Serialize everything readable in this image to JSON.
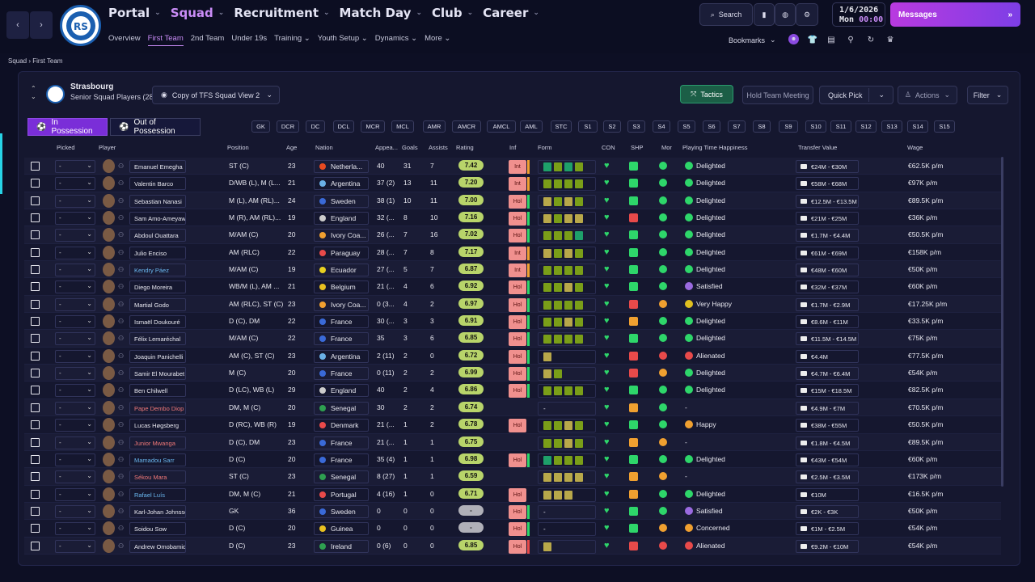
{
  "nav": {
    "main": [
      {
        "label": "Portal",
        "active": false
      },
      {
        "label": "Squad",
        "active": true
      },
      {
        "label": "Recruitment",
        "active": false
      },
      {
        "label": "Match Day",
        "active": false
      },
      {
        "label": "Club",
        "active": false
      },
      {
        "label": "Career",
        "active": false
      }
    ],
    "sub": [
      {
        "label": "Overview",
        "active": false
      },
      {
        "label": "First Team",
        "active": true
      },
      {
        "label": "2nd Team",
        "active": false
      },
      {
        "label": "Under 19s",
        "active": false
      },
      {
        "label": "Training ⌄",
        "active": false
      },
      {
        "label": "Youth Setup ⌄",
        "active": false
      },
      {
        "label": "Dynamics ⌄",
        "active": false
      },
      {
        "label": "More ⌄",
        "active": false
      }
    ],
    "search_label": "Search",
    "bookmarks_label": "Bookmarks"
  },
  "date": {
    "date": "1/6/2026",
    "day": "Mon",
    "time": "00:00"
  },
  "messages_label": "Messages",
  "breadcrumb": {
    "root": "Squad",
    "current": "First Team"
  },
  "team": {
    "name": "Strasbourg",
    "subtitle": "Senior Squad Players (28)",
    "view": "Copy of TFS Squad View 2"
  },
  "buttons": {
    "tactics": "Tactics",
    "meeting": "Hold Team Meeting",
    "quick_pick": "Quick Pick",
    "actions": "Actions",
    "filter": "Filter"
  },
  "tabs": {
    "in_possession": "In Possession",
    "out_possession": "Out of Possession"
  },
  "positions": [
    "GK",
    "DCR",
    "DC",
    "DCL",
    "MCR",
    "MCL",
    "AMR",
    "AMCR",
    "AMCL",
    "AML",
    "STC",
    "S1",
    "S2",
    "S3",
    "S4",
    "S5",
    "S6",
    "S7",
    "S8",
    "S9",
    "S10",
    "S11",
    "S12",
    "S13",
    "S14",
    "S15"
  ],
  "columns": {
    "picked": "Picked",
    "player": "Player",
    "position": "Position",
    "age": "Age",
    "nation": "Nation",
    "apps": "Appea...",
    "goals": "Goals",
    "assists": "Assists",
    "rating": "Rating",
    "inf": "Inf",
    "form": "Form",
    "con": "CON",
    "shp": "SHP",
    "mor": "Mor",
    "happiness": "Playing Time Happiness",
    "value": "Transfer Value",
    "wage": "Wage"
  },
  "colors": {
    "accent": "#c98cf6",
    "green": "#2ed66a",
    "red": "#e84a4a",
    "orange": "#f0a030",
    "yellow": "#e0c020",
    "rating": "#b8d46a"
  },
  "players": [
    {
      "pick": "-",
      "name": "Emanuel Emegha",
      "pos": "ST (C)",
      "age": "23",
      "nat": "Netherla...",
      "flag": "#e84a20",
      "apps": "40",
      "goals": "31",
      "assists": "7",
      "rating": "7.42",
      "inf": "Int",
      "infc": "#f0a030",
      "form": [
        "#1ea06a",
        "#7a9e18",
        "#1ea06a",
        "#7a9e18"
      ],
      "shp": "g",
      "mor": "g",
      "hap": "Delighted",
      "hapc": "g",
      "tv": "€24M - €30M",
      "wage": "€62.5K p/m",
      "namec": "#e8e8f0"
    },
    {
      "pick": "-",
      "name": "Valentin Barco",
      "pos": "D/WB (L), M (L...",
      "age": "21",
      "nat": "Argentina",
      "flag": "#6ab0e6",
      "apps": "37 (2)",
      "goals": "13",
      "assists": "11",
      "rating": "7.20",
      "inf": "Int",
      "infc": "#f0a030",
      "form": [
        "#7a9e18",
        "#7a9e18",
        "#7a9e18",
        "#7a9e18"
      ],
      "shp": "g",
      "mor": "g",
      "hap": "Delighted",
      "hapc": "g",
      "tv": "€58M - €68M",
      "wage": "€97K p/m",
      "namec": "#e8e8f0"
    },
    {
      "pick": "-",
      "name": "Sebastian Nanasi",
      "pos": "M (L), AM (RL)...",
      "age": "24",
      "nat": "Sweden",
      "flag": "#3a6ad8",
      "apps": "38 (1)",
      "goals": "10",
      "assists": "11",
      "rating": "7.00",
      "inf": "Hol",
      "infc": "#2ed66a",
      "form": [
        "#b8a84a",
        "#7a9e18",
        "#b8a84a",
        "#7a9e18"
      ],
      "shp": "g",
      "mor": "g",
      "hap": "Delighted",
      "hapc": "g",
      "tv": "€12.5M - €13.5M",
      "wage": "€89.5K p/m",
      "namec": "#e8e8f0"
    },
    {
      "pick": "-",
      "name": "Sam Amo-Ameyaw",
      "pos": "M (R), AM (RL)...",
      "age": "19",
      "nat": "England",
      "flag": "#cccccc",
      "apps": "32 (...",
      "goals": "8",
      "assists": "10",
      "rating": "7.16",
      "inf": "Hol",
      "infc": "#2ed66a",
      "form": [
        "#b8a84a",
        "#7a9e18",
        "#b8a84a",
        "#b8a84a"
      ],
      "shp": "r",
      "mor": "g",
      "hap": "Delighted",
      "hapc": "g",
      "tv": "€21M - €25M",
      "wage": "€36K p/m",
      "namec": "#e8e8f0"
    },
    {
      "pick": "-",
      "name": "Abdoul Ouattara",
      "pos": "M/AM (C)",
      "age": "20",
      "nat": "Ivory Coa...",
      "flag": "#f0a030",
      "apps": "26 (...",
      "goals": "7",
      "assists": "16",
      "rating": "7.02",
      "inf": "Hol",
      "infc": "#2ed66a",
      "form": [
        "#7a9e18",
        "#7a9e18",
        "#7a9e18",
        "#1ea06a"
      ],
      "shp": "g",
      "mor": "g",
      "hap": "Delighted",
      "hapc": "g",
      "tv": "€1.7M - €4.4M",
      "wage": "€50.5K p/m",
      "namec": "#e8e8f0"
    },
    {
      "pick": "-",
      "name": "Julio Enciso",
      "pos": "AM (RLC)",
      "age": "22",
      "nat": "Paraguay",
      "flag": "#e84a4a",
      "apps": "28 (...",
      "goals": "7",
      "assists": "8",
      "rating": "7.17",
      "inf": "Int",
      "infc": "#f0a030",
      "form": [
        "#b8a84a",
        "#7a9e18",
        "#b8a84a",
        "#7a9e18"
      ],
      "shp": "g",
      "mor": "g",
      "hap": "Delighted",
      "hapc": "g",
      "tv": "€61M - €69M",
      "wage": "€158K p/m",
      "namec": "#e8e8f0"
    },
    {
      "pick": "-",
      "name": "Kendry Páez",
      "pos": "M/AM (C)",
      "age": "19",
      "nat": "Ecuador",
      "flag": "#e8d020",
      "apps": "27 (...",
      "goals": "5",
      "assists": "7",
      "rating": "6.87",
      "inf": "Int",
      "infc": "#f0a030",
      "form": [
        "#7a9e18",
        "#7a9e18",
        "#7a9e18",
        "#7a9e18"
      ],
      "shp": "g",
      "mor": "g",
      "hap": "Delighted",
      "hapc": "g",
      "tv": "€48M - €60M",
      "wage": "€50K p/m",
      "namec": "#6ab8f0"
    },
    {
      "pick": "-",
      "name": "Diego Moreira",
      "pos": "WB/M (L), AM ...",
      "age": "21",
      "nat": "Belgium",
      "flag": "#e8c020",
      "apps": "21 (...",
      "goals": "4",
      "assists": "6",
      "rating": "6.92",
      "inf": "Hol",
      "infc": "#2ed66a",
      "form": [
        "#7a9e18",
        "#7a9e18",
        "#b8a84a",
        "#7a9e18"
      ],
      "shp": "g",
      "mor": "g",
      "hap": "Satisfied",
      "hapc": "p",
      "tv": "€32M - €37M",
      "wage": "€60K p/m",
      "namec": "#e8e8f0"
    },
    {
      "pick": "-",
      "name": "Martial Godo",
      "pos": "AM (RLC), ST (C)",
      "age": "23",
      "nat": "Ivory Coa...",
      "flag": "#f0a030",
      "apps": "0 (3...",
      "goals": "4",
      "assists": "2",
      "rating": "6.97",
      "inf": "Hol",
      "infc": "#2ed66a",
      "form": [
        "#7a9e18",
        "#7a9e18",
        "#7a9e18",
        "#7a9e18"
      ],
      "shp": "r",
      "mor": "o",
      "hap": "Very Happy",
      "hapc": "y",
      "tv": "€1.7M - €2.9M",
      "wage": "€17.25K p/m",
      "namec": "#e8e8f0"
    },
    {
      "pick": "-",
      "name": "Ismaël Doukouré",
      "pos": "D (C), DM",
      "age": "22",
      "nat": "France",
      "flag": "#3a6ad8",
      "apps": "30 (...",
      "goals": "3",
      "assists": "3",
      "rating": "6.91",
      "inf": "Hol",
      "infc": "#2ed66a",
      "form": [
        "#7a9e18",
        "#7a9e18",
        "#b8a84a",
        "#7a9e18"
      ],
      "shp": "o",
      "mor": "g",
      "hap": "Delighted",
      "hapc": "g",
      "tv": "€8.6M - €11M",
      "wage": "€33.5K p/m",
      "namec": "#e8e8f0"
    },
    {
      "pick": "-",
      "name": "Félix Lemaréchal",
      "pos": "M/AM (C)",
      "age": "22",
      "nat": "France",
      "flag": "#3a6ad8",
      "apps": "35",
      "goals": "3",
      "assists": "6",
      "rating": "6.85",
      "inf": "Hol",
      "infc": "#2ed66a",
      "form": [
        "#7a9e18",
        "#7a9e18",
        "#7a9e18",
        "#7a9e18"
      ],
      "shp": "g",
      "mor": "g",
      "hap": "Delighted",
      "hapc": "g",
      "tv": "€11.5M - €14.5M",
      "wage": "€75K p/m",
      "namec": "#e8e8f0"
    },
    {
      "pick": "-",
      "name": "Joaquin Panichelli",
      "pos": "AM (C), ST (C)",
      "age": "23",
      "nat": "Argentina",
      "flag": "#6ab0e6",
      "apps": "2 (11)",
      "goals": "2",
      "assists": "0",
      "rating": "6.72",
      "inf": "Hol",
      "infc": "#2ed66a",
      "form": [
        "#b8a84a"
      ],
      "shp": "r",
      "mor": "r",
      "hap": "Alienated",
      "hapc": "r",
      "tv": "€4.4M",
      "wage": "€77.5K p/m",
      "namec": "#e8e8f0"
    },
    {
      "pick": "-",
      "name": "Samir El Mourabet",
      "pos": "M (C)",
      "age": "20",
      "nat": "France",
      "flag": "#3a6ad8",
      "apps": "0 (11)",
      "goals": "2",
      "assists": "2",
      "rating": "6.99",
      "inf": "Hol",
      "infc": "#2ed66a",
      "form": [
        "#b8a84a",
        "#7a9e18"
      ],
      "shp": "r",
      "mor": "o",
      "hap": "Delighted",
      "hapc": "g",
      "tv": "€4.7M - €6.4M",
      "wage": "€54K p/m",
      "namec": "#e8e8f0"
    },
    {
      "pick": "-",
      "name": "Ben Chilwell",
      "pos": "D (LC), WB (L)",
      "age": "29",
      "nat": "England",
      "flag": "#cccccc",
      "apps": "40",
      "goals": "2",
      "assists": "4",
      "rating": "6.86",
      "inf": "Hol",
      "infc": "#2ed66a",
      "form": [
        "#7a9e18",
        "#7a9e18",
        "#7a9e18",
        "#7a9e18"
      ],
      "shp": "g",
      "mor": "g",
      "hap": "Delighted",
      "hapc": "g",
      "tv": "€15M - €18.5M",
      "wage": "€82.5K p/m",
      "namec": "#e8e8f0"
    },
    {
      "pick": "-",
      "name": "Pape Dembo Diop",
      "pos": "DM, M (C)",
      "age": "20",
      "nat": "Senegal",
      "flag": "#2ea050",
      "apps": "30",
      "goals": "2",
      "assists": "2",
      "rating": "6.74",
      "inf": "",
      "infc": "",
      "form": [
        "-"
      ],
      "shp": "o",
      "mor": "g",
      "hap": "-",
      "hapc": "",
      "tv": "€4.9M - €7M",
      "wage": "€70.5K p/m",
      "namec": "#f07878"
    },
    {
      "pick": "-",
      "name": "Lucas Høgsberg",
      "pos": "D (RC), WB (R)",
      "age": "19",
      "nat": "Denmark",
      "flag": "#e84a4a",
      "apps": "21 (...",
      "goals": "1",
      "assists": "2",
      "rating": "6.78",
      "inf": "Hol",
      "infc": "",
      "form": [
        "#7a9e18",
        "#7a9e18",
        "#b8a84a",
        "#7a9e18"
      ],
      "shp": "g",
      "mor": "g",
      "hap": "Happy",
      "hapc": "o",
      "tv": "€38M - €55M",
      "wage": "€50.5K p/m",
      "namec": "#e8e8f0"
    },
    {
      "pick": "-",
      "name": "Junior Mwanga",
      "pos": "D (C), DM",
      "age": "23",
      "nat": "France",
      "flag": "#3a6ad8",
      "apps": "21 (...",
      "goals": "1",
      "assists": "1",
      "rating": "6.75",
      "inf": "",
      "infc": "",
      "form": [
        "#7a9e18",
        "#7a9e18",
        "#b8a84a",
        "#7a9e18"
      ],
      "shp": "o",
      "mor": "o",
      "hap": "-",
      "hapc": "",
      "tv": "€1.8M - €4.5M",
      "wage": "€89.5K p/m",
      "namec": "#f07878"
    },
    {
      "pick": "-",
      "name": "Mamadou Sarr",
      "pos": "D (C)",
      "age": "20",
      "nat": "France",
      "flag": "#3a6ad8",
      "apps": "35 (4)",
      "goals": "1",
      "assists": "1",
      "rating": "6.98",
      "inf": "Hol",
      "infc": "#2ed66a",
      "form": [
        "#1ea06a",
        "#7a9e18",
        "#7a9e18",
        "#7a9e18"
      ],
      "shp": "g",
      "mor": "g",
      "hap": "Delighted",
      "hapc": "g",
      "tv": "€43M - €54M",
      "wage": "€60K p/m",
      "namec": "#6ab8f0"
    },
    {
      "pick": "-",
      "name": "Sékou Mara",
      "pos": "ST (C)",
      "age": "23",
      "nat": "Senegal",
      "flag": "#2ea050",
      "apps": "8 (27)",
      "goals": "1",
      "assists": "1",
      "rating": "6.59",
      "inf": "",
      "infc": "",
      "form": [
        "#b8a84a",
        "#b8a84a",
        "#b8a84a",
        "#b8a84a"
      ],
      "shp": "o",
      "mor": "o",
      "hap": "-",
      "hapc": "",
      "tv": "€2.5M - €3.5M",
      "wage": "€173K p/m",
      "namec": "#f07878"
    },
    {
      "pick": "-",
      "name": "Rafael Luís",
      "pos": "DM, M (C)",
      "age": "21",
      "nat": "Portugal",
      "flag": "#e84a4a",
      "apps": "4 (16)",
      "goals": "1",
      "assists": "0",
      "rating": "6.71",
      "inf": "Hol",
      "infc": "",
      "form": [
        "#b8a84a",
        "#b8a84a",
        "#b8a84a"
      ],
      "shp": "o",
      "mor": "g",
      "hap": "Delighted",
      "hapc": "g",
      "tv": "€10M",
      "wage": "€16.5K p/m",
      "namec": "#6ab8f0"
    },
    {
      "pick": "-",
      "name": "Karl-Johan Johnsson",
      "pos": "GK",
      "age": "36",
      "nat": "Sweden",
      "flag": "#3a6ad8",
      "apps": "0",
      "goals": "0",
      "assists": "0",
      "rating": "-",
      "inf": "Hol",
      "infc": "#2ed66a",
      "form": [
        "-"
      ],
      "shp": "g",
      "mor": "g",
      "hap": "Satisfied",
      "hapc": "p",
      "tv": "€2K - €3K",
      "wage": "€50K p/m",
      "namec": "#e8e8f0"
    },
    {
      "pick": "-",
      "name": "Soidou Sow",
      "pos": "D (C)",
      "age": "20",
      "nat": "Guinea",
      "flag": "#e8c020",
      "apps": "0",
      "goals": "0",
      "assists": "0",
      "rating": "-",
      "inf": "Hol",
      "infc": "#2ed66a",
      "form": [
        "-"
      ],
      "shp": "g",
      "mor": "o",
      "hap": "Concerned",
      "hapc": "o",
      "tv": "€1M - €2.5M",
      "wage": "€54K p/m",
      "namec": "#e8e8f0"
    },
    {
      "pick": "-",
      "name": "Andrew Omobamidele",
      "pos": "D (C)",
      "age": "23",
      "nat": "Ireland",
      "flag": "#2ea050",
      "apps": "0 (6)",
      "goals": "0",
      "assists": "0",
      "rating": "6.85",
      "inf": "Hol",
      "infc": "#e84a4a",
      "form": [
        "#b8a84a"
      ],
      "shp": "r",
      "mor": "r",
      "hap": "Alienated",
      "hapc": "r",
      "tv": "€9.2M - €10M",
      "wage": "€54K p/m",
      "namec": "#e8e8f0"
    }
  ]
}
